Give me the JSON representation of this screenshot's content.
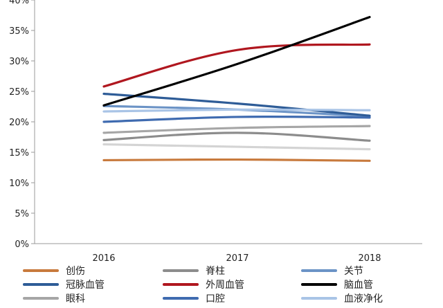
{
  "chart_data": {
    "type": "line",
    "title": "",
    "xlabel": "",
    "ylabel": "",
    "x": [
      "2016",
      "2017",
      "2018"
    ],
    "ylim": [
      0,
      40
    ],
    "yticks": [
      "0%",
      "5%",
      "10%",
      "15%",
      "20%",
      "25%",
      "30%",
      "35%",
      "40%"
    ],
    "grid": false,
    "legend_position": "bottom",
    "series": [
      {
        "name": "创伤",
        "color": "#C87A3D",
        "values": [
          13.7,
          13.8,
          13.6
        ]
      },
      {
        "name": "脊柱",
        "color": "#8C8C8C",
        "values": [
          17.0,
          18.2,
          16.9
        ]
      },
      {
        "name": "关节",
        "color": "#6B93C6",
        "values": [
          22.6,
          22.0,
          20.9
        ]
      },
      {
        "name": "冠脉血管",
        "color": "#2E5C97",
        "values": [
          24.6,
          23.0,
          21.0
        ]
      },
      {
        "name": "外周血管",
        "color": "#B0171F",
        "values": [
          25.8,
          31.8,
          32.7
        ]
      },
      {
        "name": "脑血管",
        "color": "#000000",
        "values": [
          22.7,
          29.5,
          37.2
        ]
      },
      {
        "name": "眼科",
        "color": "#A6A6A6",
        "values": [
          18.2,
          19.0,
          19.3
        ]
      },
      {
        "name": "口腔",
        "color": "#3F6BB0",
        "values": [
          20.0,
          20.8,
          20.7
        ]
      },
      {
        "name": "血液净化",
        "color": "#A9C4E6",
        "values": [
          21.7,
          22.0,
          21.9
        ]
      },
      {
        "name": "",
        "color": "#D4D4D4",
        "values": [
          16.3,
          15.9,
          15.5
        ]
      }
    ]
  }
}
